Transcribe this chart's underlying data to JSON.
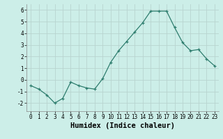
{
  "x": [
    0,
    1,
    2,
    3,
    4,
    5,
    6,
    7,
    8,
    9,
    10,
    11,
    12,
    13,
    14,
    15,
    16,
    17,
    18,
    19,
    20,
    21,
    22,
    23
  ],
  "y": [
    -0.5,
    -0.8,
    -1.3,
    -2.0,
    -1.6,
    -0.2,
    -0.5,
    -0.7,
    -0.8,
    0.1,
    1.5,
    2.5,
    3.3,
    4.1,
    4.9,
    5.9,
    5.9,
    5.9,
    4.5,
    3.2,
    2.5,
    2.6,
    1.8,
    1.2
  ],
  "line_color": "#2e7d6e",
  "marker": "+",
  "bg_color": "#cceee8",
  "grid_color": "#b8d4d0",
  "xlabel": "Humidex (Indice chaleur)",
  "xlim": [
    -0.5,
    23.5
  ],
  "ylim": [
    -2.7,
    6.5
  ],
  "yticks": [
    -2,
    -1,
    0,
    1,
    2,
    3,
    4,
    5,
    6
  ],
  "xticks": [
    0,
    1,
    2,
    3,
    4,
    5,
    6,
    7,
    8,
    9,
    10,
    11,
    12,
    13,
    14,
    15,
    16,
    17,
    18,
    19,
    20,
    21,
    22,
    23
  ],
  "tick_fontsize": 5.5,
  "xlabel_fontsize": 7.5,
  "line_width": 0.9,
  "marker_size": 3.5,
  "marker_edge_width": 0.9
}
